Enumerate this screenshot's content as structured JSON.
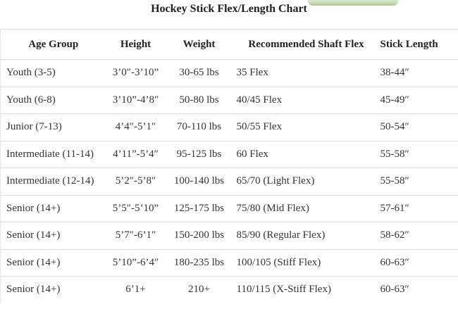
{
  "page": {
    "title": "Hockey Stick Flex/Length Chart"
  },
  "colors": {
    "divider": "#dddddd",
    "body_text": "#333333",
    "heading_text": "#222222",
    "button_fragment_green": "#cfe2c6"
  },
  "table": {
    "columns": [
      "Age Group",
      "Height",
      "Weight",
      "Recommended Shaft Flex",
      "Stick Length"
    ],
    "rows": [
      {
        "age_group": "Youth (3-5)",
        "height": "3’0″-3’10”",
        "weight": "30-65 lbs",
        "shaft_flex": "35 Flex",
        "stick_length": "38-44″"
      },
      {
        "age_group": "Youth (6-8)",
        "height": "3’10”-4’8″",
        "weight": "50-80 lbs",
        "shaft_flex": "40/45 Flex",
        "stick_length": "45-49″"
      },
      {
        "age_group": "Junior (7-13)",
        "height": "4’4″-5’1″",
        "weight": "70-110 lbs",
        "shaft_flex": "50/55 Flex",
        "stick_length": "50-54″"
      },
      {
        "age_group": "Intermediate (11-14)",
        "height": "4’11”-5’4″",
        "weight": "95-125 lbs",
        "shaft_flex": "60 Flex",
        "stick_length": "55-58″"
      },
      {
        "age_group": "Intermediate (12-14)",
        "height": "5’2″-5’8″",
        "weight": "100-140 lbs",
        "shaft_flex": "65/70 (Light Flex)",
        "stick_length": "55-58″"
      },
      {
        "age_group": "Senior (14+)",
        "height": "5’5″-5’10”",
        "weight": "125-175 lbs",
        "shaft_flex": "75/80 (Mid Flex)",
        "stick_length": "57-61″"
      },
      {
        "age_group": "Senior (14+)",
        "height": "5’7″-6’1″",
        "weight": "150-200 lbs",
        "shaft_flex": "85/90 (Regular Flex)",
        "stick_length": "58-62″"
      },
      {
        "age_group": "Senior (14+)",
        "height": "5’10”-6’4″",
        "weight": "180-235 lbs",
        "shaft_flex": "100/105 (Stiff Flex)",
        "stick_length": "60-63″"
      },
      {
        "age_group": "Senior (14+)",
        "height": "6’1+",
        "weight": "210+",
        "shaft_flex": "110/115 (X-Stiff Flex)",
        "stick_length": "60-63″"
      }
    ]
  },
  "chart_data": {
    "type": "table",
    "title": "Hockey Stick Flex/Length Chart",
    "columns": [
      "Age Group",
      "Height",
      "Weight",
      "Recommended Shaft Flex",
      "Stick Length"
    ],
    "rows": [
      [
        "Youth (3-5)",
        "3’0″-3’10”",
        "30-65 lbs",
        "35 Flex",
        "38-44″"
      ],
      [
        "Youth (6-8)",
        "3’10”-4’8″",
        "50-80 lbs",
        "40/45 Flex",
        "45-49″"
      ],
      [
        "Junior (7-13)",
        "4’4″-5’1″",
        "70-110 lbs",
        "50/55 Flex",
        "50-54″"
      ],
      [
        "Intermediate (11-14)",
        "4’11”-5’4″",
        "95-125 lbs",
        "60 Flex",
        "55-58″"
      ],
      [
        "Intermediate (12-14)",
        "5’2″-5’8″",
        "100-140 lbs",
        "65/70 (Light Flex)",
        "55-58″"
      ],
      [
        "Senior (14+)",
        "5’5″-5’10”",
        "125-175 lbs",
        "75/80 (Mid Flex)",
        "57-61″"
      ],
      [
        "Senior (14+)",
        "5’7″-6’1″",
        "150-200 lbs",
        "85/90 (Regular Flex)",
        "58-62″"
      ],
      [
        "Senior (14+)",
        "5’10”-6’4″",
        "180-235 lbs",
        "100/105 (Stiff Flex)",
        "60-63″"
      ],
      [
        "Senior (14+)",
        "6’1+",
        "210+",
        "110/115 (X-Stiff Flex)",
        "60-63″"
      ]
    ]
  }
}
